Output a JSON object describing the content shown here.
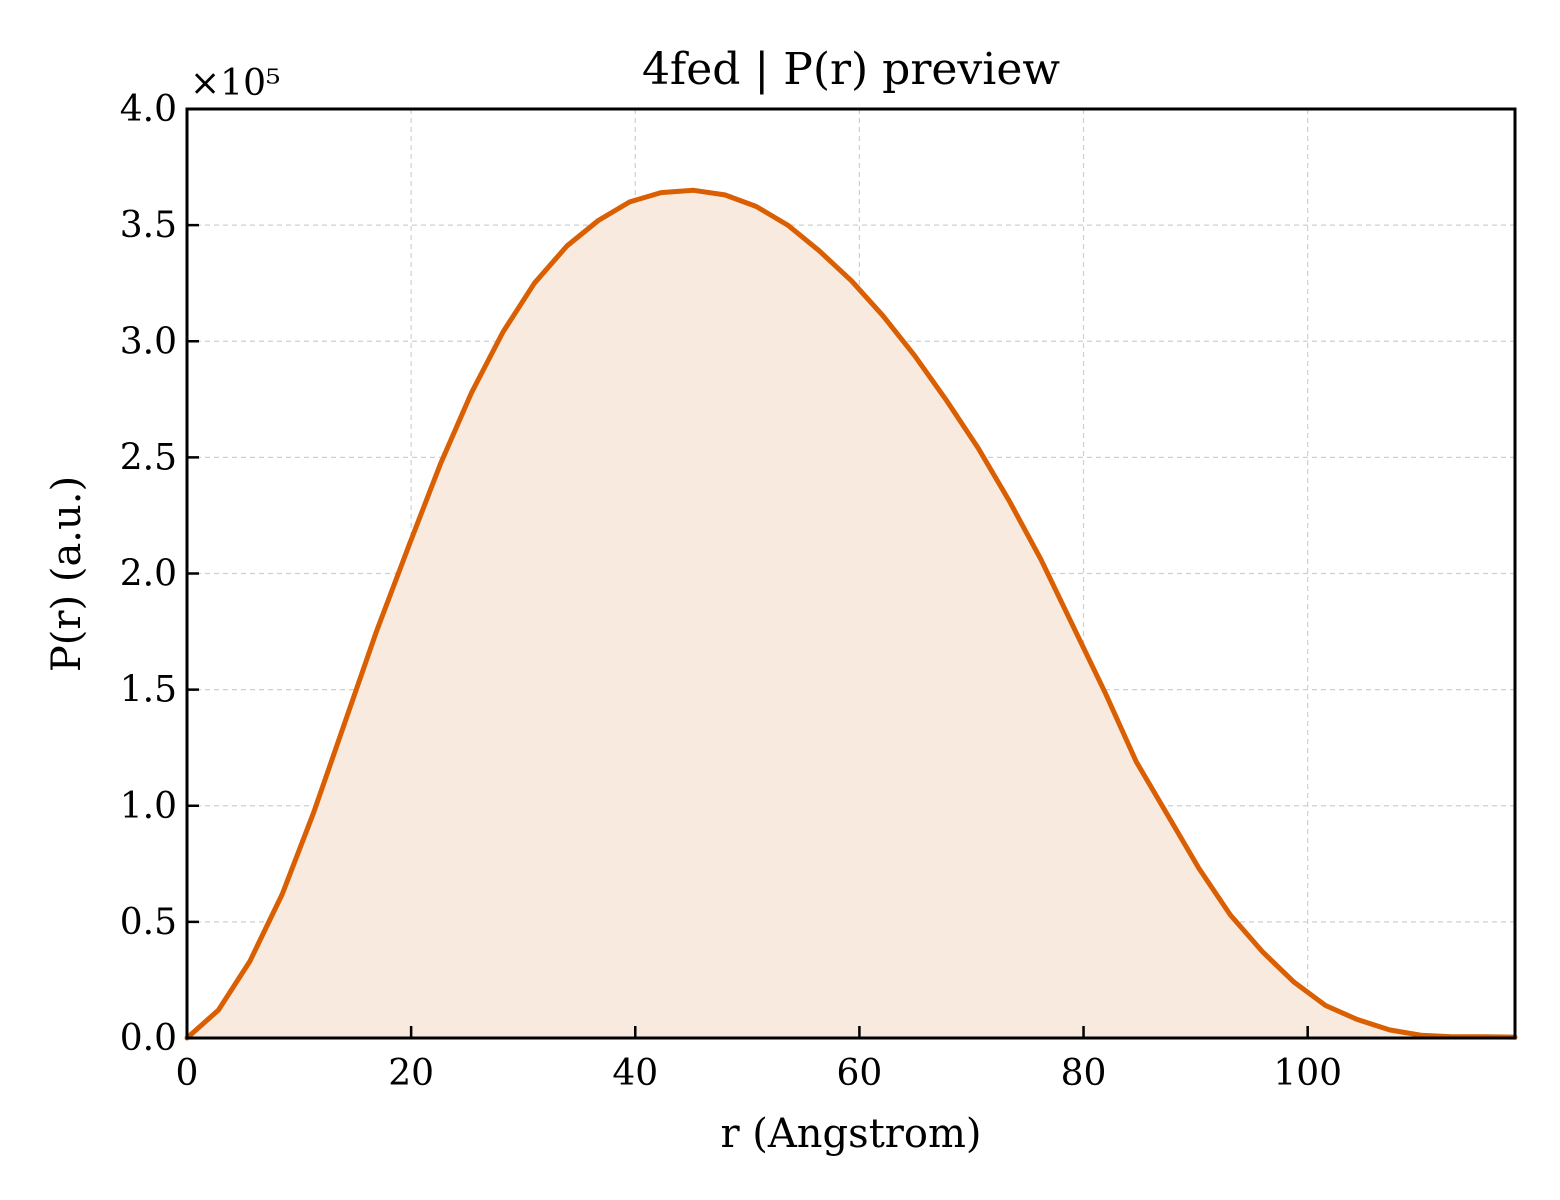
{
  "chart_data": {
    "type": "area",
    "title": "4fed | P(r) preview",
    "xlabel": "r (Angstrom)",
    "ylabel": "P(r) (a.u.)",
    "y_offset_label": "×10⁵",
    "xlim": [
      0,
      118.5
    ],
    "ylim": [
      0,
      4.0
    ],
    "x_ticks": [
      0,
      20,
      40,
      60,
      80,
      100
    ],
    "x_tick_labels": [
      "0",
      "20",
      "40",
      "60",
      "80",
      "100"
    ],
    "y_ticks": [
      0,
      0.5,
      1.0,
      1.5,
      2.0,
      2.5,
      3.0,
      3.5,
      4.0
    ],
    "y_tick_labels": [
      "0.0",
      "0.5",
      "1.0",
      "1.5",
      "2.0",
      "2.5",
      "3.0",
      "3.5",
      "4.0"
    ],
    "grid": true,
    "line_color": "#d95f02",
    "fill_color": "#f9eadf",
    "series": [
      {
        "x": [
          0,
          2.8,
          5.6,
          8.5,
          11.3,
          14.1,
          16.9,
          19.8,
          22.6,
          25.4,
          28.2,
          31.0,
          33.9,
          36.7,
          39.5,
          42.3,
          45.2,
          48.0,
          50.8,
          53.6,
          56.4,
          59.3,
          62.1,
          64.9,
          67.7,
          70.6,
          73.4,
          76.2,
          79.0,
          81.9,
          84.7,
          87.5,
          90.3,
          93.1,
          96.0,
          98.8,
          101.6,
          104.4,
          107.3,
          110.1,
          112.9,
          115.7,
          118.5
        ],
        "values": [
          0.0,
          0.12,
          0.33,
          0.62,
          0.97,
          1.36,
          1.75,
          2.12,
          2.47,
          2.78,
          3.04,
          3.25,
          3.41,
          3.52,
          3.6,
          3.64,
          3.65,
          3.63,
          3.58,
          3.5,
          3.39,
          3.26,
          3.11,
          2.94,
          2.75,
          2.54,
          2.31,
          2.06,
          1.78,
          1.49,
          1.19,
          0.96,
          0.73,
          0.53,
          0.37,
          0.24,
          0.14,
          0.08,
          0.035,
          0.012,
          0.005,
          0.005,
          0.004
        ]
      }
    ]
  }
}
